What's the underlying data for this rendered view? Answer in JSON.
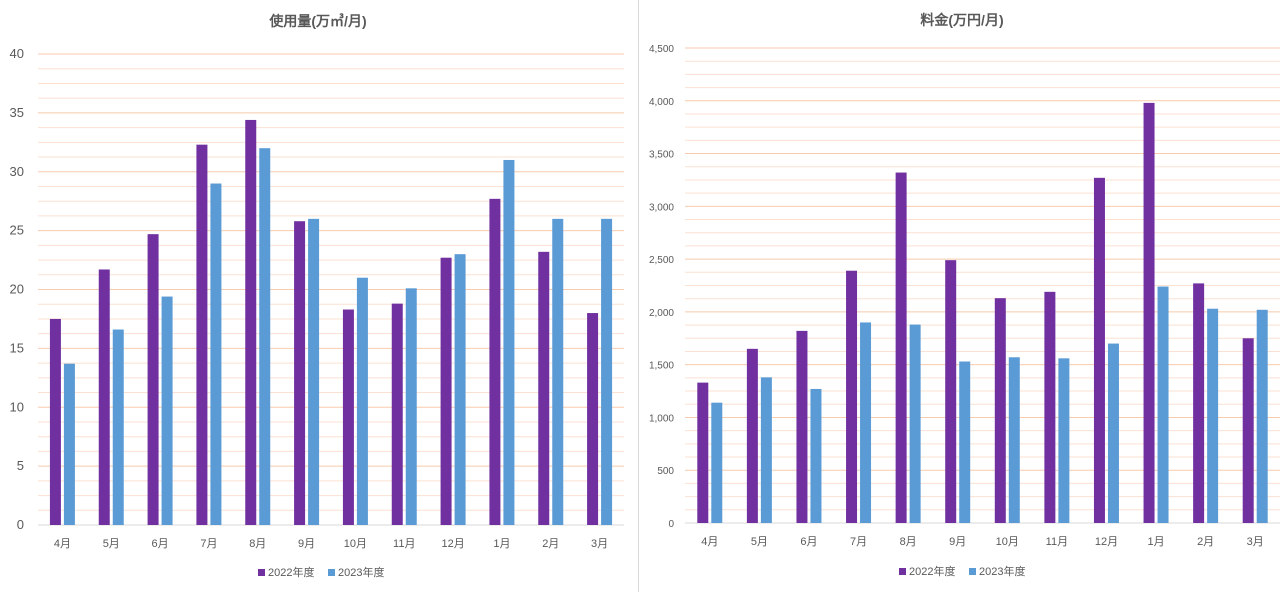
{
  "chart_data": [
    {
      "type": "bar",
      "title": "使用量(万㎥/月)",
      "categories": [
        "4月",
        "5月",
        "6月",
        "7月",
        "8月",
        "9月",
        "10月",
        "11月",
        "12月",
        "1月",
        "2月",
        "3月"
      ],
      "series": [
        {
          "name": "2022年度",
          "color": "#7030a0",
          "values": [
            17.5,
            21.7,
            24.7,
            32.3,
            34.4,
            25.8,
            18.3,
            18.8,
            22.7,
            27.7,
            23.2,
            18.0
          ]
        },
        {
          "name": "2023年度",
          "color": "#5b9bd5",
          "values": [
            13.7,
            16.6,
            19.4,
            29.0,
            32.0,
            26.0,
            21.0,
            20.1,
            23.0,
            31.0,
            26.0,
            26.0
          ]
        }
      ],
      "ylim": [
        0,
        40
      ],
      "yticks": [
        "0",
        "5",
        "10",
        "15",
        "20",
        "25",
        "30",
        "35",
        "40"
      ],
      "grid": "minor-and-major",
      "legend": "bottom"
    },
    {
      "type": "bar",
      "title": "料金(万円/月)",
      "categories": [
        "4月",
        "5月",
        "6月",
        "7月",
        "8月",
        "9月",
        "10月",
        "11月",
        "12月",
        "1月",
        "2月",
        "3月"
      ],
      "series": [
        {
          "name": "2022年度",
          "color": "#7030a0",
          "values": [
            1330,
            1650,
            1820,
            2390,
            3320,
            2490,
            2130,
            2190,
            3270,
            3980,
            2270,
            1750
          ]
        },
        {
          "name": "2023年度",
          "color": "#5b9bd5",
          "values": [
            1140,
            1380,
            1270,
            1900,
            1880,
            1530,
            1570,
            1560,
            1700,
            2240,
            2030,
            2020
          ]
        }
      ],
      "ylim": [
        0,
        4500
      ],
      "yticks": [
        "0",
        "500",
        "1,000",
        "1,500",
        "2,000",
        "2,500",
        "3,000",
        "3,500",
        "4,000",
        "4,500"
      ],
      "grid": "minor-and-major",
      "legend": "bottom"
    }
  ]
}
